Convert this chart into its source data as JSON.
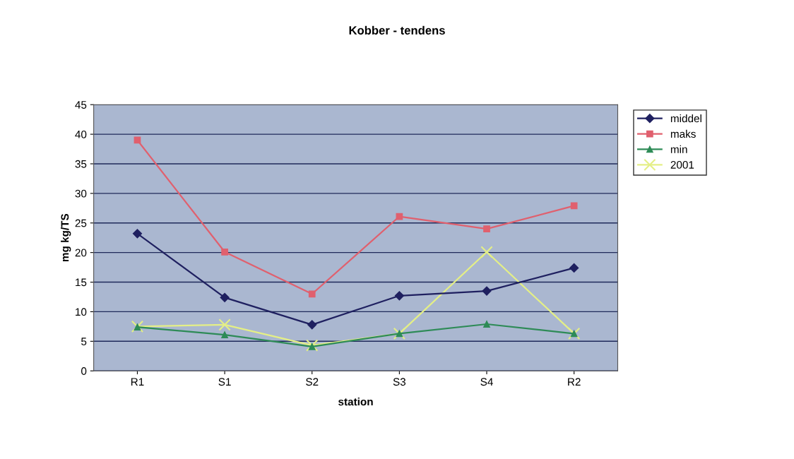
{
  "chart_data": {
    "type": "line",
    "title": "Kobber - tendens",
    "xlabel": "station",
    "ylabel": "mg kg/TS",
    "categories": [
      "R1",
      "S1",
      "S2",
      "S3",
      "S4",
      "R2"
    ],
    "series": [
      {
        "name": "middel",
        "color": "#1f2060",
        "marker": "diamond",
        "values": [
          23.2,
          12.4,
          7.8,
          12.7,
          13.5,
          17.4
        ]
      },
      {
        "name": "maks",
        "color": "#e0606e",
        "marker": "square",
        "values": [
          39.0,
          20.1,
          13.0,
          26.1,
          24.0,
          27.9
        ]
      },
      {
        "name": "min",
        "color": "#2e8b57",
        "marker": "triangle",
        "values": [
          7.4,
          6.1,
          4.1,
          6.3,
          7.9,
          6.3
        ]
      },
      {
        "name": "2001",
        "color": "#e4ef86",
        "marker": "cross",
        "values": [
          7.5,
          7.8,
          4.3,
          6.3,
          20.1,
          6.3
        ]
      }
    ],
    "ylim": [
      0,
      45
    ],
    "yticks": [
      0,
      5,
      10,
      15,
      20,
      25,
      30,
      35,
      40,
      45
    ],
    "grid": "y",
    "legend": "right",
    "line_style": "solid"
  }
}
